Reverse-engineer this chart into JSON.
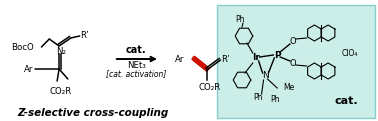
{
  "bg_color": "#ffffff",
  "cat_box_color": "#cceee8",
  "cat_box_border": "#88cccc",
  "red_color": "#cc1100",
  "black": "#000000",
  "caption_bold": "Z-selective cross-coupling",
  "arrow_text_top": "cat.",
  "net3_label": "NEt₃",
  "cat_activation": "[cat. activation]",
  "boco_text": "BocO",
  "r_prime": "R’",
  "n2_label": "N₂",
  "ar_label": "Ar",
  "co2r_label": "CO₂R",
  "ir_label": "Ir",
  "p_label": "P",
  "n_label": "N",
  "o_label": "O",
  "me_label": "Me",
  "clo4_label": "ClO₄",
  "cat_text": "cat.",
  "ph_label": "Ph",
  "fig_width": 3.78,
  "fig_height": 1.21,
  "dpi": 100
}
